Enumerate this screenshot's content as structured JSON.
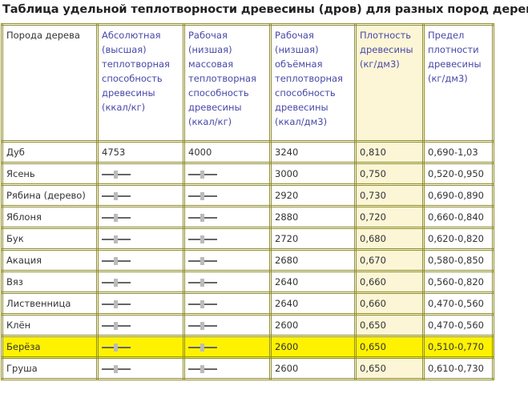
{
  "title": "Таблица удельной теплотворности древесины (дров) для разных пород дерева",
  "headers": [
    "Порода дерева",
    "Абсолютная (высшая) теплотворная способность древесины (ккал/кг)",
    "Рабочая (низшая) массовая теплотворная способность древесины (ккал/кг)",
    "Рабочая (низшая) объёмная теплотворная способность древесины (ккал/дм3)",
    "Плотность древесины (кг/дм3)",
    "Предел плотности древесины (кг/дм3)"
  ],
  "highlight_color": "#fff200",
  "rows": [
    {
      "name": "Дуб",
      "abs": "4753",
      "mass": "4000",
      "vol": "3240",
      "dens": "0,810",
      "range": "0,690-1,03"
    },
    {
      "name": "Ясень",
      "abs": null,
      "mass": null,
      "vol": "3000",
      "dens": "0,750",
      "range": "0,520-0,950"
    },
    {
      "name": "Рябина (дерево)",
      "abs": null,
      "mass": null,
      "vol": "2920",
      "dens": "0,730",
      "range": "0,690-0,890"
    },
    {
      "name": "Яблоня",
      "abs": null,
      "mass": null,
      "vol": "2880",
      "dens": "0,720",
      "range": "0,660-0,840"
    },
    {
      "name": "Бук",
      "abs": null,
      "mass": null,
      "vol": "2720",
      "dens": "0,680",
      "range": "0,620-0,820"
    },
    {
      "name": "Акация",
      "abs": null,
      "mass": null,
      "vol": "2680",
      "dens": "0,670",
      "range": "0,580-0,850"
    },
    {
      "name": "Вяз",
      "abs": null,
      "mass": null,
      "vol": "2640",
      "dens": "0,660",
      "range": "0,560-0,820"
    },
    {
      "name": "Лиственница",
      "abs": null,
      "mass": null,
      "vol": "2640",
      "dens": "0,660",
      "range": "0,470-0,560"
    },
    {
      "name": "Клён",
      "abs": null,
      "mass": null,
      "vol": "2600",
      "dens": "0,650",
      "range": "0,470-0,560"
    },
    {
      "name": "Берёза",
      "abs": null,
      "mass": null,
      "vol": "2600",
      "dens": "0,650",
      "range": "0,510-0,770",
      "highlight": true
    },
    {
      "name": "Груша",
      "abs": null,
      "mass": null,
      "vol": "2600",
      "dens": "0,650",
      "range": "0,610-0,730"
    }
  ],
  "missing_value_icon": "dash-placeholder-icon"
}
